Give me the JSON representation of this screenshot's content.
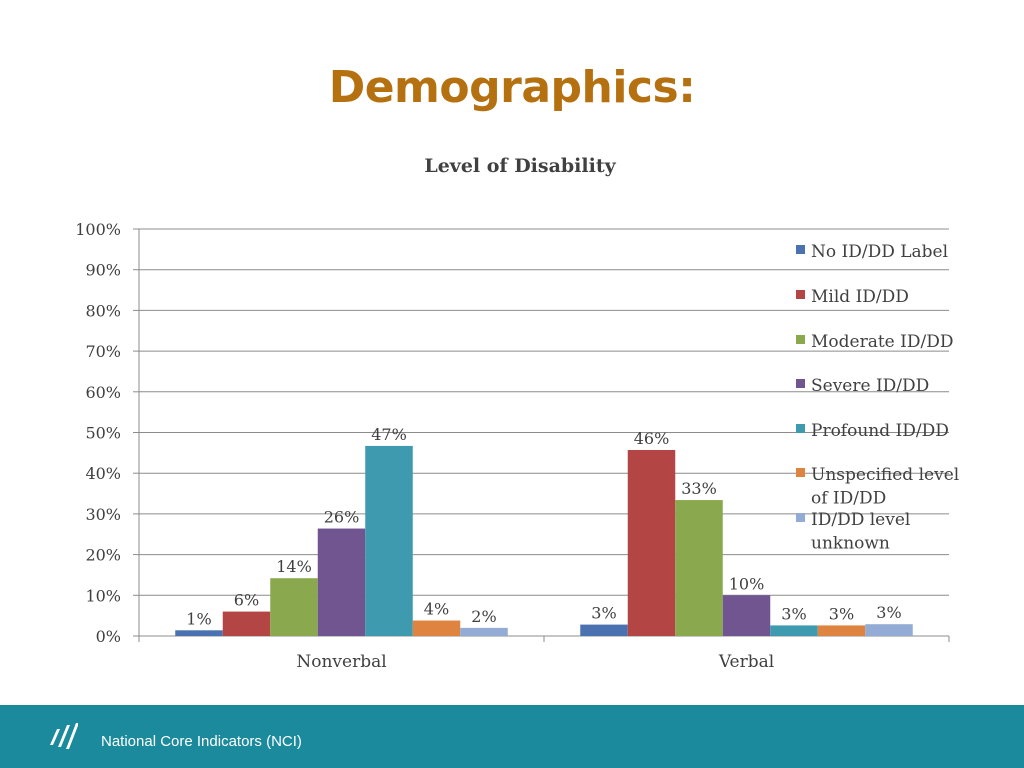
{
  "slide": {
    "title": "Demographics:",
    "footer_text": "National Core Indicators (NCI)"
  },
  "chart_data": {
    "type": "bar",
    "title": "Level of Disability",
    "xlabel": "",
    "ylabel": "",
    "ylim": [
      0,
      100
    ],
    "y_ticks": [
      "0%",
      "10%",
      "20%",
      "30%",
      "40%",
      "50%",
      "60%",
      "70%",
      "80%",
      "90%",
      "100%"
    ],
    "grid": true,
    "legend": "right",
    "categories": [
      "Nonverbal",
      "Verbal"
    ],
    "series": [
      {
        "name": "No ID/DD Label",
        "values": [
          1.4,
          2.8
        ],
        "labels": [
          "1%",
          "3%"
        ],
        "color": "#4a72b0"
      },
      {
        "name": "Mild ID/DD",
        "values": [
          6,
          45.7
        ],
        "labels": [
          "6%",
          "46%"
        ],
        "color": "#b34545"
      },
      {
        "name": "Moderate ID/DD",
        "values": [
          14.2,
          33.4
        ],
        "labels": [
          "14%",
          "33%"
        ],
        "color": "#8aa84e"
      },
      {
        "name": "Severe ID/DD",
        "values": [
          26.4,
          10
        ],
        "labels": [
          "26%",
          "10%"
        ],
        "color": "#715591"
      },
      {
        "name": "Profound ID/DD",
        "values": [
          46.7,
          2.6
        ],
        "labels": [
          "47%",
          "3%"
        ],
        "color": "#3d9aaf"
      },
      {
        "name": "Unspecified level of ID/DD",
        "values": [
          3.8,
          2.6
        ],
        "labels": [
          "4%",
          "3%"
        ],
        "color": "#de8440"
      },
      {
        "name": "ID/DD level unknown",
        "values": [
          2,
          2.9
        ],
        "labels": [
          "2%",
          "3%"
        ],
        "color": "#93acd6"
      }
    ]
  }
}
